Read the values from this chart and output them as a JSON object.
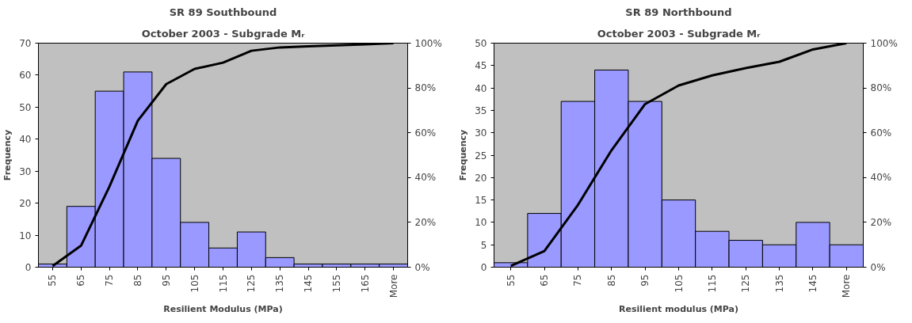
{
  "chart_data": [
    {
      "type": "bar",
      "title": "SR 89 Southbound",
      "subtitle": "October 2003 - Subgrade Mᵣ",
      "xlabel": "Resilient Modulus (MPa)",
      "ylabel": "Frequency",
      "categories": [
        "55",
        "65",
        "75",
        "85",
        "95",
        "105",
        "115",
        "125",
        "135",
        "145",
        "155",
        "165",
        "More"
      ],
      "series": [
        {
          "color": "#9999ff",
          "values": [
            1,
            19,
            55,
            61,
            34,
            14,
            6,
            11,
            3,
            1,
            1,
            1,
            1
          ]
        },
        {
          "type": "line",
          "axis": "y2",
          "color": "#000000",
          "values": [
            0.5,
            9.6,
            36,
            65.4,
            81.7,
            88.5,
            91.3,
            96.6,
            98.1,
            98.6,
            99,
            99.5,
            100
          ]
        }
      ],
      "ylim": [
        0,
        70
      ],
      "yticks": [
        0,
        10,
        20,
        30,
        40,
        50,
        60,
        70
      ],
      "y2lim": [
        0,
        100
      ],
      "y2ticks": [
        {
          "value": 0,
          "label": "0%"
        },
        {
          "value": 20,
          "label": "20%"
        },
        {
          "value": 40,
          "label": "40%"
        },
        {
          "value": 60,
          "label": "60%"
        },
        {
          "value": 80,
          "label": "80%"
        },
        {
          "value": 100,
          "label": "100%"
        }
      ],
      "grid": false
    },
    {
      "type": "bar",
      "title": "SR 89 Northbound",
      "subtitle": "October 2003 - Subgrade Mᵣ",
      "xlabel": "Resilient modulus (MPa)",
      "ylabel": "Frequency",
      "categories": [
        "55",
        "65",
        "75",
        "85",
        "95",
        "105",
        "115",
        "125",
        "135",
        "145",
        "More"
      ],
      "series": [
        {
          "color": "#9999ff",
          "values": [
            1,
            12,
            37,
            44,
            37,
            15,
            8,
            6,
            5,
            10,
            5
          ]
        },
        {
          "type": "line",
          "axis": "y2",
          "color": "#000000",
          "values": [
            0.6,
            7.2,
            27.8,
            52.2,
            72.8,
            81.1,
            85.6,
            88.9,
            91.7,
            97.2,
            100
          ]
        }
      ],
      "ylim": [
        0,
        50
      ],
      "yticks": [
        0,
        5,
        10,
        15,
        20,
        25,
        30,
        35,
        40,
        45,
        50
      ],
      "y2lim": [
        0,
        100
      ],
      "y2ticks": [
        {
          "value": 0,
          "label": "0%"
        },
        {
          "value": 20,
          "label": "20%"
        },
        {
          "value": 40,
          "label": "40%"
        },
        {
          "value": 60,
          "label": "60%"
        },
        {
          "value": 80,
          "label": "80%"
        },
        {
          "value": 100,
          "label": "100%"
        }
      ],
      "grid": false
    }
  ]
}
